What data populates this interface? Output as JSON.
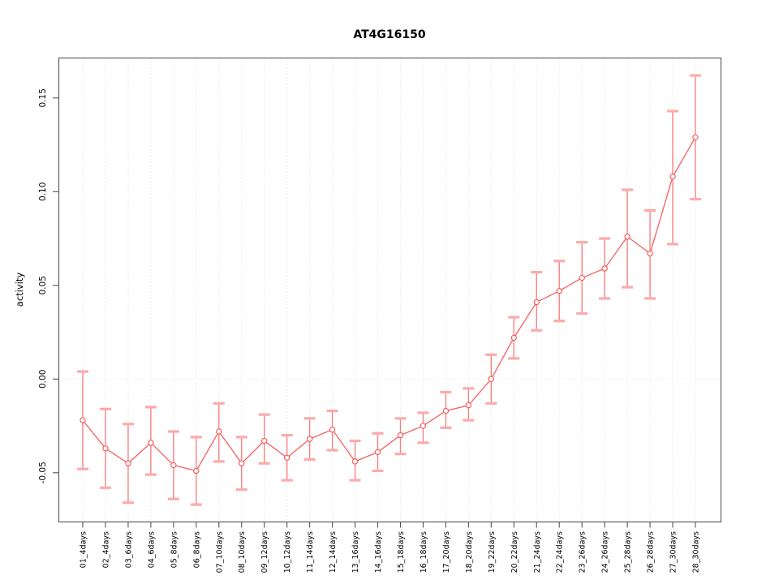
{
  "chart_data": {
    "type": "line",
    "title": "AT4G16150",
    "ylabel": "activity",
    "xlabel": "",
    "legend_position": "none",
    "grid": {
      "vertical_at_each_x": true,
      "horizontal_at_zero": true,
      "style": "dotted"
    },
    "categories": [
      "01_4days",
      "02_4days",
      "03_6days",
      "04_6days",
      "05_8days",
      "06_8days",
      "07_10days",
      "08_10days",
      "09_12days",
      "10_12days",
      "11_14days",
      "12_14days",
      "13_16days",
      "14_16days",
      "15_18days",
      "16_18days",
      "17_20days",
      "18_20days",
      "19_22days",
      "20_22days",
      "21_24days",
      "22_24days",
      "23_26days",
      "24_26days",
      "25_28days",
      "26_28days",
      "27_30days",
      "28_30days"
    ],
    "series": [
      {
        "name": "activity",
        "values": [
          -0.022,
          -0.037,
          -0.045,
          -0.034,
          -0.046,
          -0.049,
          -0.028,
          -0.045,
          -0.033,
          -0.042,
          -0.032,
          -0.027,
          -0.044,
          -0.039,
          -0.03,
          -0.025,
          -0.017,
          -0.014,
          0.0,
          0.022,
          0.041,
          0.047,
          0.054,
          0.059,
          0.076,
          0.067,
          0.108,
          0.129
        ],
        "error_upper": [
          0.004,
          -0.016,
          -0.024,
          -0.015,
          -0.028,
          -0.031,
          -0.013,
          -0.031,
          -0.019,
          -0.03,
          -0.021,
          -0.017,
          -0.033,
          -0.029,
          -0.021,
          -0.018,
          -0.007,
          -0.005,
          0.013,
          0.033,
          0.057,
          0.063,
          0.073,
          0.075,
          0.101,
          0.09,
          0.143,
          0.162
        ],
        "error_lower": [
          -0.048,
          -0.058,
          -0.066,
          -0.051,
          -0.064,
          -0.067,
          -0.044,
          -0.059,
          -0.045,
          -0.054,
          -0.043,
          -0.038,
          -0.054,
          -0.049,
          -0.04,
          -0.034,
          -0.026,
          -0.022,
          -0.013,
          0.011,
          0.026,
          0.031,
          0.035,
          0.043,
          0.049,
          0.043,
          0.072,
          0.096
        ]
      }
    ],
    "yticks": {
      "values": [
        -0.05,
        0.0,
        0.05,
        0.1,
        0.15
      ],
      "labels": [
        "-0.05",
        "0.00",
        "0.05",
        "0.10",
        "0.15"
      ]
    },
    "ylim": [
      -0.076,
      0.172
    ],
    "colors": {
      "series": "#f85e5e",
      "error_line": "#f98080",
      "error_cap": "#fcaaaa",
      "gridline": "#d9d9d9",
      "frame": "#555555",
      "text": "#000000",
      "background": "#ffffff"
    }
  }
}
